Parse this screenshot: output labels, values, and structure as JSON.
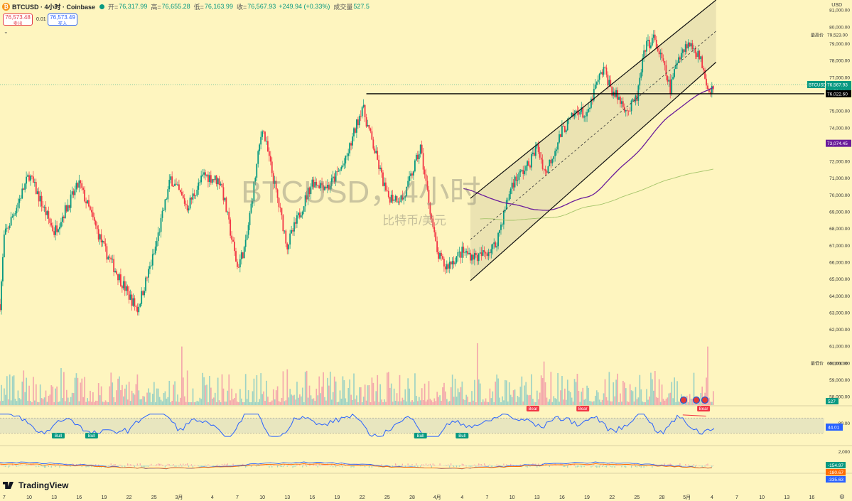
{
  "header": {
    "symbol": "BTCUSD · 4小时 · Coinbase",
    "open_label": "开=",
    "open": "76,317.99",
    "high_label": "高=",
    "high": "76,655.28",
    "low_label": "低=",
    "low": "76,163.99",
    "close_label": "收=",
    "close": "76,567.93",
    "change": "+249.94 (+0.33%)",
    "volume_label": "成交量",
    "volume": "527.5",
    "coin_icon": "bitcoin-icon"
  },
  "trade": {
    "sell_price": "76,573.48",
    "sell_label": "卖出",
    "spread": "0.01",
    "buy_price": "76,573.49",
    "buy_label": "买入",
    "collapse_icon": "chevron-down-icon"
  },
  "watermark": {
    "title": "BTCUSD，4小时",
    "subtitle": "比特币/美元"
  },
  "currency": "USD",
  "brand": "TradingView",
  "colors": {
    "up": "#089981",
    "down": "#f23645",
    "background": "#fef5bf"
  },
  "chart_data": [
    {
      "type": "candlestick",
      "title": "BTCUSD，4小时",
      "subtitle": "比特币/美元",
      "ylim": [
        57500,
        81600
      ],
      "y_ticks": [
        "81,000.00",
        "80,000.00",
        "79,000.00",
        "78,000.00",
        "77,000.00",
        "76,000.00",
        "75,000.00",
        "74,000.00",
        "73,000.00",
        "72,000.00",
        "71,000.00",
        "70,000.00",
        "69,000.00",
        "68,000.00",
        "67,000.00",
        "66,000.00",
        "65,000.00",
        "64,000.00",
        "63,000.00",
        "62,000.00",
        "61,000.00",
        "60,000.00",
        "59,000.00",
        "58,000.00"
      ],
      "x_ticks": [
        "7",
        "10",
        "13",
        "16",
        "19",
        "22",
        "25",
        "3月",
        "4",
        "7",
        "10",
        "13",
        "16",
        "19",
        "22",
        "25",
        "28",
        "4月",
        "4",
        "7",
        "10",
        "13",
        "16",
        "19",
        "22",
        "25",
        "28",
        "5月",
        "4",
        "7",
        "10",
        "13",
        "16"
      ],
      "x_ticks_days": [
        7,
        10,
        13,
        16,
        19,
        22,
        25,
        28,
        32,
        35,
        38,
        41,
        44,
        47,
        50,
        53,
        56,
        59,
        62,
        65,
        68,
        71,
        74,
        77,
        80,
        83,
        86,
        89,
        92,
        95,
        98,
        101,
        104
      ],
      "x_days_range": [
        6.5,
        105.5
      ],
      "trend_points": [
        [
          6.5,
          63500
        ],
        [
          7,
          67500
        ],
        [
          10,
          71200
        ],
        [
          13,
          67800
        ],
        [
          16,
          70700
        ],
        [
          19,
          66800
        ],
        [
          22,
          64000
        ],
        [
          23,
          63200
        ],
        [
          25,
          66500
        ],
        [
          27,
          71000
        ],
        [
          29,
          69300
        ],
        [
          31,
          71200
        ],
        [
          33,
          70800
        ],
        [
          35,
          65700
        ],
        [
          36,
          67000
        ],
        [
          38,
          74100
        ],
        [
          41,
          67000
        ],
        [
          44,
          70800
        ],
        [
          46,
          70500
        ],
        [
          48,
          72000
        ],
        [
          50,
          75300
        ],
        [
          51,
          73500
        ],
        [
          53,
          69900
        ],
        [
          55,
          69800
        ],
        [
          57,
          72800
        ],
        [
          59,
          66500
        ],
        [
          60,
          65700
        ],
        [
          62,
          66600
        ],
        [
          64,
          66300
        ],
        [
          66,
          67000
        ],
        [
          68,
          70700
        ],
        [
          70,
          71800
        ],
        [
          71,
          72900
        ],
        [
          72,
          71300
        ],
        [
          74,
          73800
        ],
        [
          76,
          75100
        ],
        [
          77,
          74600
        ],
        [
          78,
          76400
        ],
        [
          79,
          77500
        ],
        [
          80,
          76200
        ],
        [
          82,
          75000
        ],
        [
          83,
          75800
        ],
        [
          84,
          78800
        ],
        [
          85,
          79300
        ],
        [
          86,
          78000
        ],
        [
          87,
          76300
        ],
        [
          88,
          78300
        ],
        [
          89,
          79000
        ],
        [
          90,
          78700
        ],
        [
          91,
          77600
        ],
        [
          91.6,
          76200
        ],
        [
          92.2,
          76568
        ]
      ],
      "price_labels": {
        "last": "76,567.93",
        "countdown": "01:50:14",
        "symbol_tag": "BTCUSD",
        "level": "76,022.60",
        "ma": "73,074.45",
        "high_tag": "最高价",
        "high_value": "79,523.00",
        "low_tag": "最低价",
        "low_value": "60,001.00",
        "volume": "527"
      },
      "levels": {
        "horizontal": 76022.6,
        "horizontal_start_day": 50.5,
        "period_high": 79523,
        "period_low": 60001
      },
      "channel": {
        "upper": [
          [
            63,
            69800
          ],
          [
            92.5,
            81600
          ]
        ],
        "lower": [
          [
            63,
            64900
          ],
          [
            92.5,
            77900
          ]
        ]
      },
      "ma_long_end": 73074.45
    },
    {
      "type": "line",
      "name": "RSI",
      "ylim": [
        0,
        100
      ],
      "band": [
        30,
        70
      ],
      "last_value": "44.01",
      "signals": [
        {
          "label": "Bull",
          "day": 13.5
        },
        {
          "label": "Bull",
          "day": 17.5
        },
        {
          "label": "Bull",
          "day": 57
        },
        {
          "label": "Bull",
          "day": 62
        },
        {
          "label": "Bear",
          "day": 70.5
        },
        {
          "label": "Bear",
          "day": 76.5
        },
        {
          "label": "Bear",
          "day": 91
        }
      ]
    },
    {
      "type": "line",
      "name": "MACD",
      "tick": "2,000",
      "values": [
        "-154.97",
        "-180.67",
        "-335.63"
      ]
    }
  ]
}
